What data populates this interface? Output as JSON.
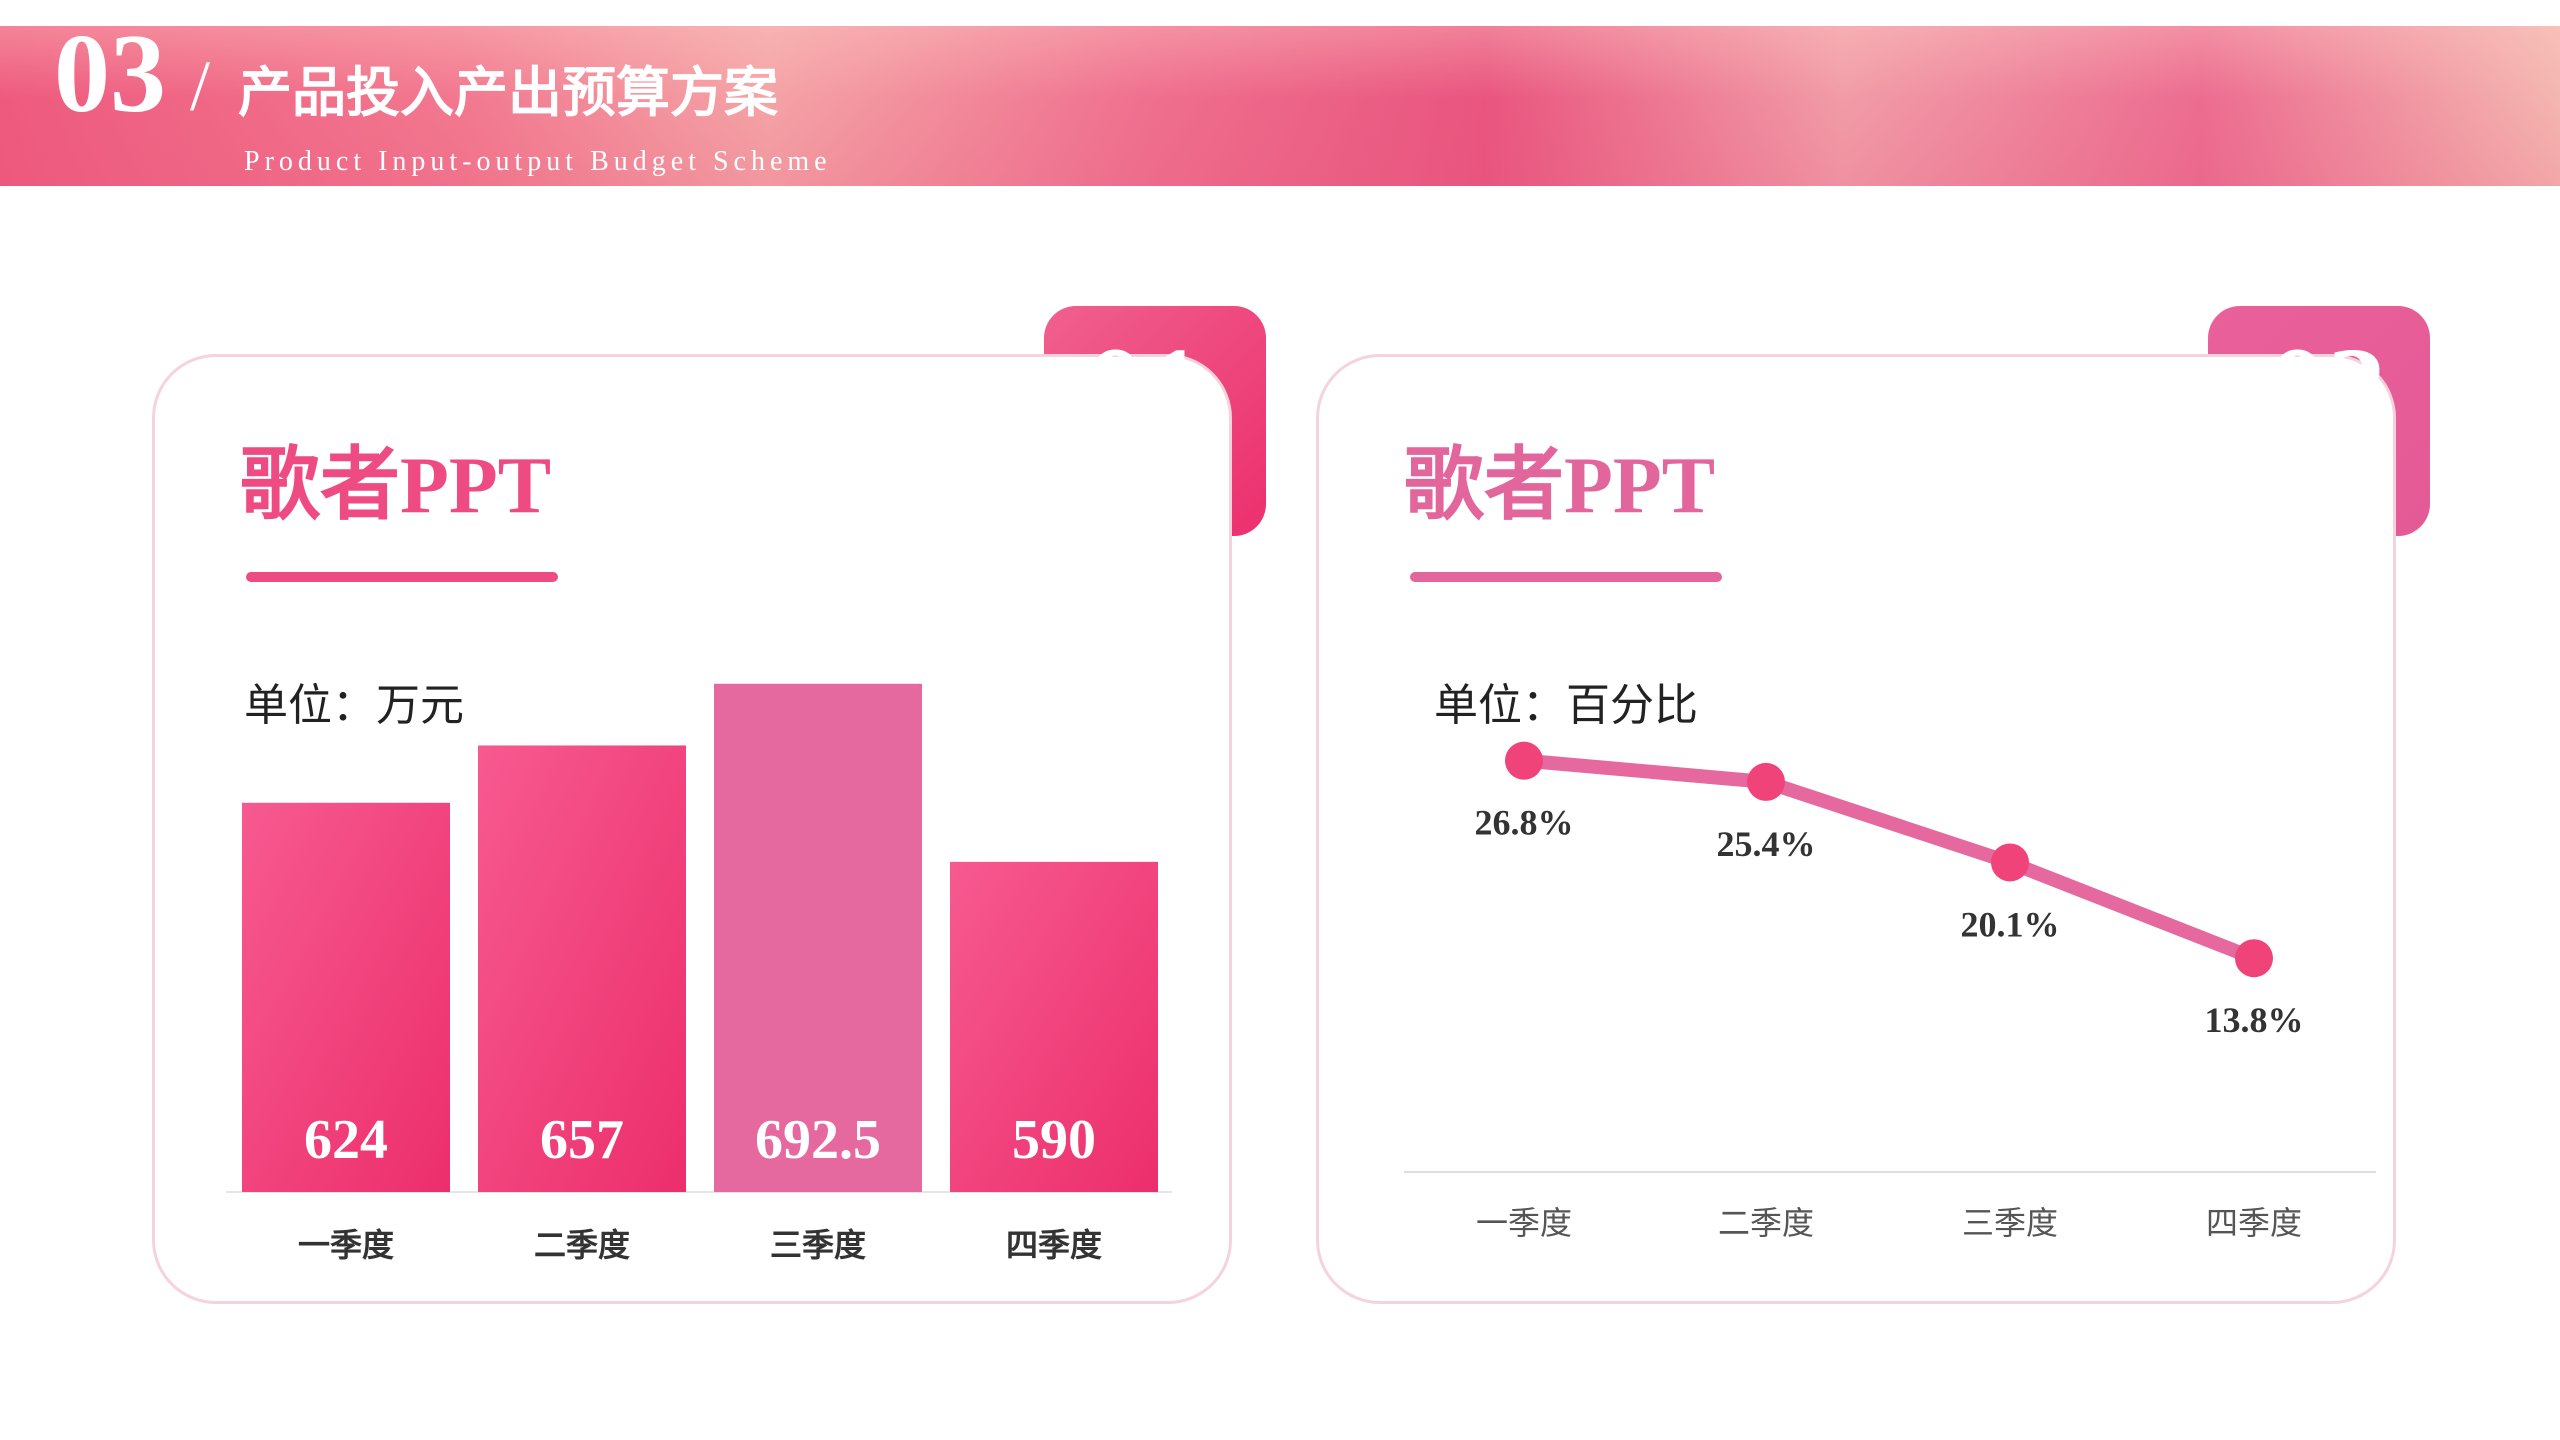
{
  "header": {
    "section_number": "03",
    "slash": "/",
    "title": "产品投入产出预算方案",
    "subtitle": "Product Input-output Budget Scheme"
  },
  "colors": {
    "accent": "#f0437a",
    "accent_light": "#e5689f",
    "card_border": "#f6d2dc"
  },
  "cards": [
    {
      "tag_number": "01",
      "title": "歌者PPT",
      "unit": "单位：万元"
    },
    {
      "tag_number": "02",
      "title": "歌者PPT",
      "unit": "单位：百分比"
    }
  ],
  "chart_data": [
    {
      "type": "bar",
      "categories": [
        "一季度",
        "二季度",
        "三季度",
        "四季度"
      ],
      "values": [
        624,
        657,
        692.5,
        590
      ],
      "value_labels": [
        "624",
        "657",
        "692.5",
        "590"
      ],
      "highlight_index": 2,
      "ylim": [
        400,
        720
      ],
      "grid": false
    },
    {
      "type": "line",
      "categories": [
        "一季度",
        "二季度",
        "三季度",
        "四季度"
      ],
      "values": [
        26.8,
        25.4,
        20.1,
        13.8
      ],
      "value_labels": [
        "26.8%",
        "25.4%",
        "20.1%",
        "13.8%"
      ],
      "ylim": [
        0,
        30
      ],
      "grid": false
    }
  ]
}
